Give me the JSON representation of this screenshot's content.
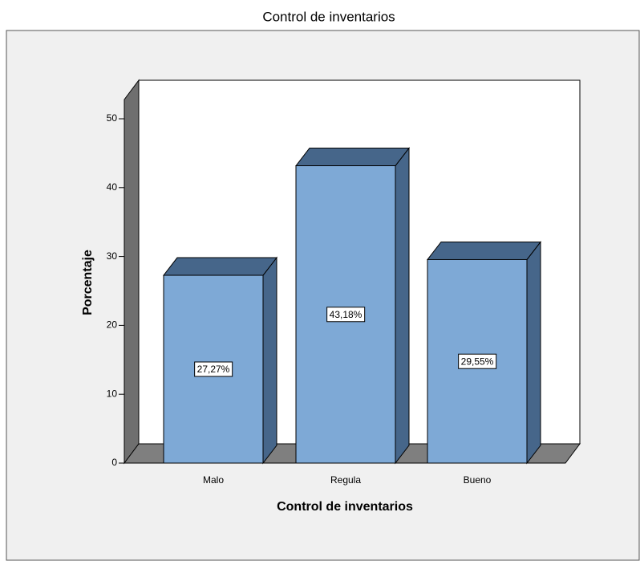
{
  "chart_data": {
    "type": "bar3d",
    "title": "Control de inventarios",
    "xlabel": "Control de inventarios",
    "ylabel": "Porcentaje",
    "categories": [
      "Malo",
      "Regula",
      "Bueno"
    ],
    "values": [
      27.27,
      43.18,
      29.55
    ],
    "value_labels": [
      "27,27%",
      "43,18%",
      "29,55%"
    ],
    "color": "#7ea9d6",
    "ylim": [
      0,
      50
    ],
    "yticks": [
      0,
      10,
      20,
      30,
      40,
      50
    ]
  }
}
